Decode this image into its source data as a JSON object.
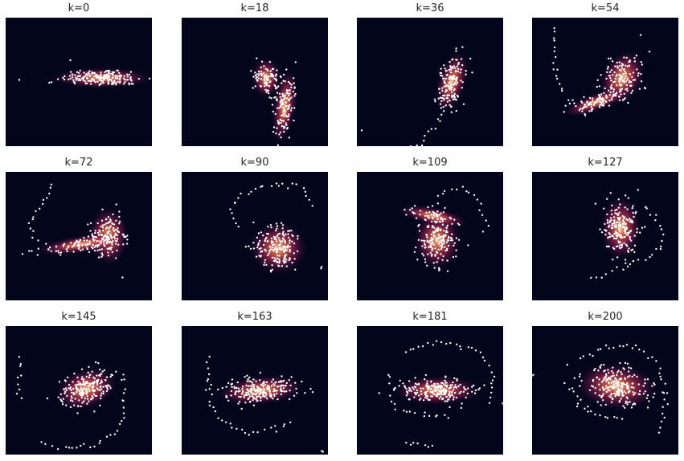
{
  "chart_data": {
    "type": "scatter",
    "description_style": "density-heatmap",
    "colormap": "rocket",
    "background_color": "#03051A",
    "point_color": "#ffffff",
    "axes_visible": false,
    "grid": false,
    "panels": [
      {
        "title": "k=0"
      },
      {
        "title": "k=18"
      },
      {
        "title": "k=36"
      },
      {
        "title": "k=54"
      },
      {
        "title": "k=72"
      },
      {
        "title": "k=90"
      },
      {
        "title": "k=109"
      },
      {
        "title": "k=127"
      },
      {
        "title": "k=145"
      },
      {
        "title": "k=163"
      },
      {
        "title": "k=181"
      },
      {
        "title": "k=200"
      }
    ]
  }
}
